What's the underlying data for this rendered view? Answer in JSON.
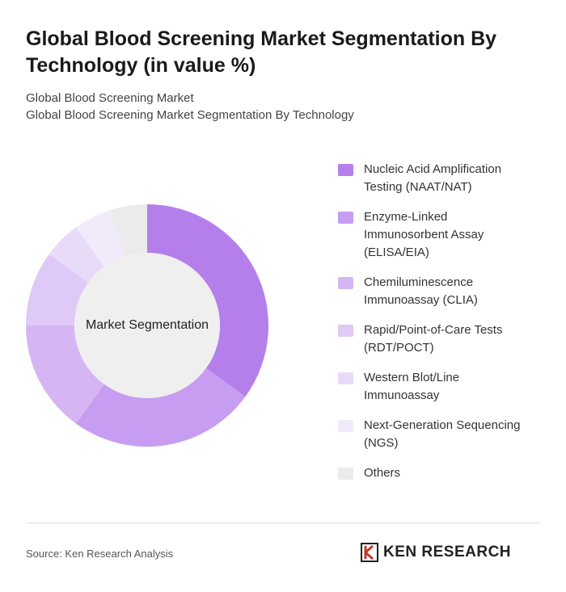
{
  "chart_data": {
    "type": "donut",
    "title": "Global Blood Screening Market Segmentation By Technology (in value %)",
    "subtitle": [
      "Global Blood Screening Market",
      "Global Blood Screening Market Segmentation By Technology"
    ],
    "center_label": "Market Segmentation",
    "categories": [
      "Nucleic Acid Amplification Testing (NAAT/NAT)",
      "Enzyme-Linked Immunosorbent Assay (ELISA/EIA)",
      "Chemiluminescence Immunoassay (CLIA)",
      "Rapid/Point-of-Care Tests (RDT/POCT)",
      "Western Blot/Line Immunoassay",
      "Next-Generation Sequencing (NGS)",
      "Others"
    ],
    "values": [
      35,
      25,
      15,
      10,
      5,
      5,
      5
    ],
    "colors": [
      "#b57feb",
      "#c69df0",
      "#d5b6f3",
      "#dfc9f6",
      "#e8dbf8",
      "#f1eafb",
      "#ebebeb"
    ],
    "source": "Source: Ken Research Analysis",
    "logo": "KEN RESEARCH"
  }
}
